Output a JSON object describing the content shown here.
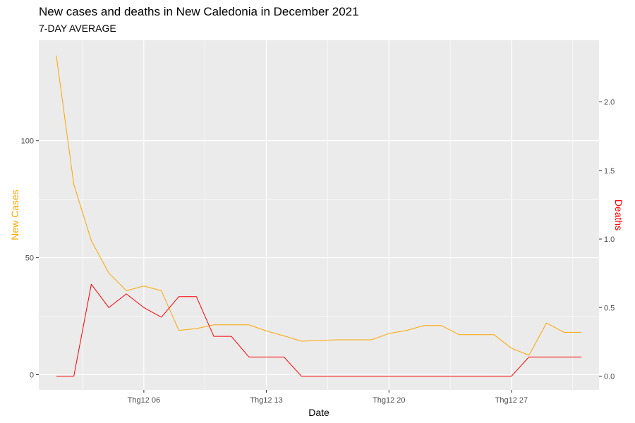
{
  "title": "New cases and deaths in New Caledonia in December 2021",
  "subtitle": "7-DAY AVERAGE",
  "chart_data": {
    "type": "line",
    "title": "New cases and deaths in New Caledonia in December 2021",
    "subtitle": "7-DAY AVERAGE",
    "xlabel": "Date",
    "ylabel_left": "New Cases",
    "ylabel_right": "Deaths",
    "x": [
      "2021-12-01",
      "2021-12-02",
      "2021-12-03",
      "2021-12-04",
      "2021-12-05",
      "2021-12-06",
      "2021-12-07",
      "2021-12-08",
      "2021-12-09",
      "2021-12-10",
      "2021-12-11",
      "2021-12-12",
      "2021-12-13",
      "2021-12-14",
      "2021-12-15",
      "2021-12-16",
      "2021-12-17",
      "2021-12-18",
      "2021-12-19",
      "2021-12-20",
      "2021-12-21",
      "2021-12-22",
      "2021-12-23",
      "2021-12-24",
      "2021-12-25",
      "2021-12-26",
      "2021-12-27",
      "2021-12-28",
      "2021-12-29",
      "2021-12-30",
      "2021-12-31"
    ],
    "x_ticks": [
      {
        "date": "2021-12-06",
        "label": "Thg12 06"
      },
      {
        "date": "2021-12-13",
        "label": "Thg12 13"
      },
      {
        "date": "2021-12-20",
        "label": "Thg12 20"
      },
      {
        "date": "2021-12-27",
        "label": "Thg12 27"
      }
    ],
    "x_range": [
      "2020-11-30",
      "2021-12-32"
    ],
    "xlim": [
      "2021-11-30",
      "2022-01-01"
    ],
    "ylim_left": [
      -6.5,
      143
    ],
    "yticks_left": [
      0,
      50,
      100
    ],
    "ylim_right": [
      -0.1,
      2.45
    ],
    "yticks_right": [
      0.0,
      0.5,
      1.0,
      1.5,
      2.0
    ],
    "ytick_labels_right": [
      "0.0",
      "0.5",
      "1.0",
      "1.5",
      "2.0"
    ],
    "grid": true,
    "series": [
      {
        "name": "New Cases",
        "axis": "left",
        "color": "#FFA500",
        "values": [
          136.4,
          81.3,
          57.3,
          43.4,
          35.9,
          37.9,
          35.9,
          18.9,
          19.7,
          21.3,
          21.3,
          21.3,
          18.7,
          16.6,
          14.3,
          14.6,
          14.9,
          14.9,
          14.9,
          17.6,
          18.9,
          21.0,
          21.0,
          17.1,
          17.1,
          17.1,
          11.3,
          8.3,
          22.1,
          18.1,
          18.1
        ]
      },
      {
        "name": "Deaths",
        "axis": "right",
        "color": "#FF0000",
        "values": [
          0,
          0,
          0.67,
          0.5,
          0.6,
          0.5,
          0.43,
          0.58,
          0.58,
          0.29,
          0.29,
          0.14,
          0.14,
          0.14,
          0,
          0,
          0,
          0,
          0,
          0,
          0,
          0,
          0,
          0,
          0,
          0,
          0,
          0.14,
          0.14,
          0.14,
          0.14
        ]
      }
    ],
    "colors": {
      "panel_bg": "#EBEBEB",
      "grid": "#FFFFFF",
      "cases": "#FFA500",
      "deaths": "#FF0000"
    }
  }
}
